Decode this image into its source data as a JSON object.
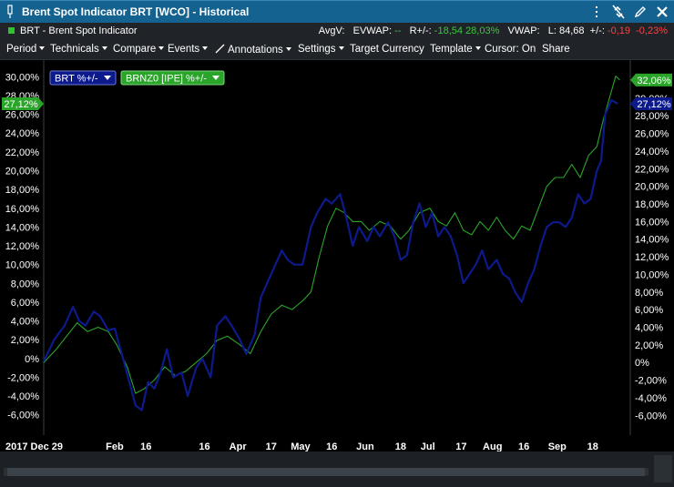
{
  "window": {
    "title": "Brent Spot Indicator BRT [WCO] - Historical"
  },
  "quote": {
    "symbol_text": "BRT - Brent Spot Indicator",
    "avgv_label": "AvgV:",
    "evwap_label": "EVWAP:",
    "evwap_value": "--",
    "r_label": "R+/-:",
    "r_value": "-18,54",
    "r_pct": "28,03%",
    "vwap_label": "VWAP:",
    "last_label": "L:",
    "last_value": "84,68",
    "chg_label": "+/-:",
    "chg_value": "-0,19",
    "chg_pct": "-0,23%"
  },
  "menu": {
    "period": "Period",
    "technicals": "Technicals",
    "compare": "Compare",
    "events": "Events",
    "annotations": "Annotations",
    "settings": "Settings",
    "target_currency": "Target Currency",
    "template": "Template",
    "cursor": "Cursor: On",
    "share": "Share"
  },
  "icons": [
    "menu-icon",
    "pin-icon",
    "unlink-icon",
    "close-icon",
    "pencil-icon",
    "square-icon"
  ],
  "colors": {
    "brt": "#0d1a8c",
    "brnz0": "#2aa52a",
    "titlebar": "#14628f"
  },
  "chart_data": {
    "type": "line",
    "x_ticks": [
      {
        "label": "2017 Dec 29",
        "date": "2017-12-29"
      },
      {
        "label": "Feb",
        "date": "2018-02-01"
      },
      {
        "label": "16",
        "date": "2018-02-16"
      },
      {
        "label": "16",
        "date": "2018-03-16"
      },
      {
        "label": "Apr",
        "date": "2018-04-01"
      },
      {
        "label": "17",
        "date": "2018-04-17"
      },
      {
        "label": "May",
        "date": "2018-05-01"
      },
      {
        "label": "16",
        "date": "2018-05-16"
      },
      {
        "label": "Jun",
        "date": "2018-06-01"
      },
      {
        "label": "18",
        "date": "2018-06-18"
      },
      {
        "label": "Jul",
        "date": "2018-07-01"
      },
      {
        "label": "17",
        "date": "2018-07-17"
      },
      {
        "label": "Aug",
        "date": "2018-08-01"
      },
      {
        "label": "16",
        "date": "2018-08-16"
      },
      {
        "label": "Sep",
        "date": "2018-09-01"
      },
      {
        "label": "18",
        "date": "2018-09-18"
      }
    ],
    "left_ticks": [
      "30,00%",
      "28,00%",
      "26,00%",
      "24,00%",
      "22,00%",
      "20,00%",
      "18,00%",
      "16,00%",
      "14,00%",
      "12,00%",
      "10,00%",
      "8,00%",
      "6,00%",
      "4,00%",
      "2,00%",
      "0%",
      "-2,00%",
      "-4,00%",
      "-6,00%"
    ],
    "right_ticks": [
      "30,00%",
      "28,00%",
      "26,00%",
      "24,00%",
      "22,00%",
      "20,00%",
      "18,00%",
      "16,00%",
      "14,00%",
      "12,00%",
      "10,00%",
      "8,00%",
      "6,00%",
      "4,00%",
      "2,00%",
      "0%",
      "-2,00%",
      "-4,00%",
      "-6,00%"
    ],
    "left_ylim": [
      -6.8,
      31
    ],
    "right_ylim": [
      -6.8,
      33.5
    ],
    "xlim": [
      "2017-12-29",
      "2018-10-06"
    ],
    "series": [
      {
        "name": "BRT %+/-",
        "axis": "left",
        "last_label": "27,12%",
        "points": [
          [
            "2017-12-29",
            -0.3
          ],
          [
            "2018-01-03",
            2.0
          ],
          [
            "2018-01-08",
            3.5
          ],
          [
            "2018-01-12",
            5.5
          ],
          [
            "2018-01-15",
            4.0
          ],
          [
            "2018-01-18",
            3.5
          ],
          [
            "2018-01-22",
            5.0
          ],
          [
            "2018-01-25",
            4.5
          ],
          [
            "2018-01-29",
            3.0
          ],
          [
            "2018-02-01",
            3.2
          ],
          [
            "2018-02-05",
            0.0
          ],
          [
            "2018-02-08",
            -2.5
          ],
          [
            "2018-02-11",
            -5.0
          ],
          [
            "2018-02-14",
            -5.5
          ],
          [
            "2018-02-17",
            -2.5
          ],
          [
            "2018-02-20",
            -3.2
          ],
          [
            "2018-02-23",
            -1.5
          ],
          [
            "2018-02-26",
            1.0
          ],
          [
            "2018-03-01",
            -2.0
          ],
          [
            "2018-03-05",
            -1.5
          ],
          [
            "2018-03-08",
            -4.0
          ],
          [
            "2018-03-12",
            -1.0
          ],
          [
            "2018-03-15",
            0.0
          ],
          [
            "2018-03-19",
            -2.0
          ],
          [
            "2018-03-22",
            3.5
          ],
          [
            "2018-03-26",
            4.5
          ],
          [
            "2018-03-29",
            3.5
          ],
          [
            "2018-04-02",
            2.0
          ],
          [
            "2018-04-05",
            0.5
          ],
          [
            "2018-04-09",
            2.5
          ],
          [
            "2018-04-12",
            6.5
          ],
          [
            "2018-04-16",
            8.5
          ],
          [
            "2018-04-19",
            10.0
          ],
          [
            "2018-04-22",
            11.5
          ],
          [
            "2018-04-25",
            10.5
          ],
          [
            "2018-04-28",
            10.0
          ],
          [
            "2018-05-02",
            10.0
          ],
          [
            "2018-05-06",
            14.0
          ],
          [
            "2018-05-09",
            15.5
          ],
          [
            "2018-05-13",
            17.0
          ],
          [
            "2018-05-16",
            16.5
          ],
          [
            "2018-05-20",
            17.5
          ],
          [
            "2018-05-23",
            15.0
          ],
          [
            "2018-05-26",
            12.0
          ],
          [
            "2018-05-29",
            14.0
          ],
          [
            "2018-06-02",
            12.5
          ],
          [
            "2018-06-05",
            14.0
          ],
          [
            "2018-06-08",
            13.0
          ],
          [
            "2018-06-12",
            14.5
          ],
          [
            "2018-06-15",
            13.0
          ],
          [
            "2018-06-18",
            10.5
          ],
          [
            "2018-06-21",
            11.0
          ],
          [
            "2018-06-24",
            14.5
          ],
          [
            "2018-06-27",
            16.5
          ],
          [
            "2018-06-30",
            14.0
          ],
          [
            "2018-07-03",
            15.5
          ],
          [
            "2018-07-06",
            13.0
          ],
          [
            "2018-07-09",
            14.0
          ],
          [
            "2018-07-12",
            13.0
          ],
          [
            "2018-07-15",
            11.0
          ],
          [
            "2018-07-18",
            8.0
          ],
          [
            "2018-07-21",
            9.0
          ],
          [
            "2018-07-24",
            10.0
          ],
          [
            "2018-07-27",
            11.5
          ],
          [
            "2018-07-30",
            9.5
          ],
          [
            "2018-08-03",
            10.5
          ],
          [
            "2018-08-06",
            9.0
          ],
          [
            "2018-08-09",
            8.5
          ],
          [
            "2018-08-12",
            7.0
          ],
          [
            "2018-08-15",
            6.0
          ],
          [
            "2018-08-18",
            8.0
          ],
          [
            "2018-08-21",
            9.5
          ],
          [
            "2018-08-24",
            12.0
          ],
          [
            "2018-08-27",
            14.0
          ],
          [
            "2018-08-30",
            14.5
          ],
          [
            "2018-09-02",
            14.5
          ],
          [
            "2018-09-05",
            14.0
          ],
          [
            "2018-09-08",
            15.0
          ],
          [
            "2018-09-11",
            17.5
          ],
          [
            "2018-09-14",
            16.5
          ],
          [
            "2018-09-17",
            17.0
          ],
          [
            "2018-09-20",
            20.0
          ],
          [
            "2018-09-22",
            21.0
          ],
          [
            "2018-09-24",
            26.0
          ],
          [
            "2018-09-27",
            27.5
          ],
          [
            "2018-09-30",
            27.12
          ]
        ]
      },
      {
        "name": "BRNZ0 [IPE] %+/-",
        "axis": "right",
        "last_label": "32,06%",
        "points": [
          [
            "2017-12-29",
            0.0
          ],
          [
            "2018-01-04",
            1.5
          ],
          [
            "2018-01-09",
            3.0
          ],
          [
            "2018-01-14",
            4.5
          ],
          [
            "2018-01-19",
            3.5
          ],
          [
            "2018-01-24",
            4.0
          ],
          [
            "2018-01-29",
            3.5
          ],
          [
            "2018-02-02",
            2.0
          ],
          [
            "2018-02-07",
            -0.5
          ],
          [
            "2018-02-11",
            -3.5
          ],
          [
            "2018-02-15",
            -3.0
          ],
          [
            "2018-02-20",
            -2.0
          ],
          [
            "2018-02-25",
            -0.5
          ],
          [
            "2018-03-02",
            -1.5
          ],
          [
            "2018-03-07",
            -1.0
          ],
          [
            "2018-03-12",
            0.0
          ],
          [
            "2018-03-17",
            1.0
          ],
          [
            "2018-03-22",
            2.5
          ],
          [
            "2018-03-27",
            3.0
          ],
          [
            "2018-04-02",
            2.0
          ],
          [
            "2018-04-07",
            1.0
          ],
          [
            "2018-04-12",
            3.5
          ],
          [
            "2018-04-17",
            5.5
          ],
          [
            "2018-04-22",
            6.5
          ],
          [
            "2018-04-27",
            6.0
          ],
          [
            "2018-05-02",
            7.0
          ],
          [
            "2018-05-06",
            8.0
          ],
          [
            "2018-05-10",
            12.0
          ],
          [
            "2018-05-14",
            15.5
          ],
          [
            "2018-05-18",
            17.5
          ],
          [
            "2018-05-22",
            17.0
          ],
          [
            "2018-05-26",
            16.0
          ],
          [
            "2018-05-30",
            16.0
          ],
          [
            "2018-06-03",
            15.0
          ],
          [
            "2018-06-08",
            16.0
          ],
          [
            "2018-06-13",
            15.5
          ],
          [
            "2018-06-18",
            14.0
          ],
          [
            "2018-06-22",
            15.0
          ],
          [
            "2018-06-27",
            17.0
          ],
          [
            "2018-07-02",
            17.5
          ],
          [
            "2018-07-06",
            16.0
          ],
          [
            "2018-07-10",
            15.5
          ],
          [
            "2018-07-14",
            17.0
          ],
          [
            "2018-07-18",
            15.0
          ],
          [
            "2018-07-22",
            14.5
          ],
          [
            "2018-07-26",
            16.0
          ],
          [
            "2018-07-30",
            15.0
          ],
          [
            "2018-08-03",
            16.5
          ],
          [
            "2018-08-07",
            15.0
          ],
          [
            "2018-08-11",
            14.0
          ],
          [
            "2018-08-15",
            15.5
          ],
          [
            "2018-08-19",
            15.0
          ],
          [
            "2018-08-23",
            17.5
          ],
          [
            "2018-08-27",
            20.0
          ],
          [
            "2018-08-31",
            21.0
          ],
          [
            "2018-09-04",
            21.0
          ],
          [
            "2018-09-08",
            22.5
          ],
          [
            "2018-09-12",
            21.0
          ],
          [
            "2018-09-16",
            23.5
          ],
          [
            "2018-09-20",
            24.5
          ],
          [
            "2018-09-23",
            27.5
          ],
          [
            "2018-09-26",
            30.0
          ],
          [
            "2018-09-29",
            32.5
          ],
          [
            "2018-10-01",
            32.06
          ]
        ]
      }
    ],
    "grid": false,
    "legend": "top-left"
  }
}
